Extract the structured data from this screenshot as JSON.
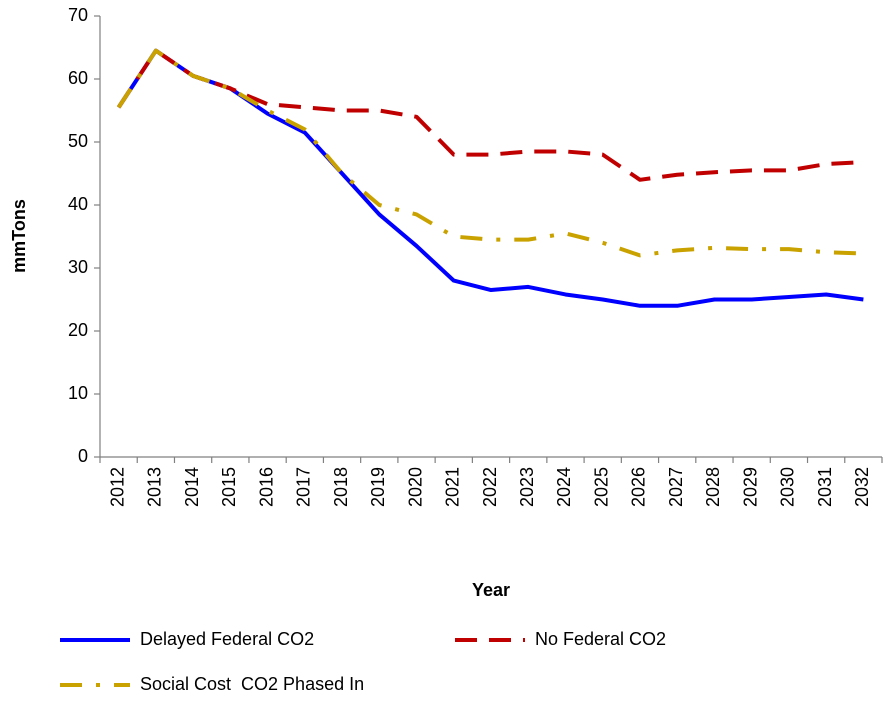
{
  "chart_data": {
    "type": "line",
    "x_label": "Year",
    "y_label": "mmTons",
    "categories": [
      "2012",
      "2013",
      "2014",
      "2015",
      "2016",
      "2017",
      "2018",
      "2019",
      "2020",
      "2021",
      "2022",
      "2023",
      "2024",
      "2025",
      "2026",
      "2027",
      "2028",
      "2029",
      "2030",
      "2031",
      "2032"
    ],
    "series": [
      {
        "name": "Delayed Federal CO2",
        "color": "#0000ff",
        "line_style": "solid",
        "values": [
          55.5,
          64.5,
          60.5,
          58.5,
          54.5,
          51.5,
          45,
          38.5,
          33.5,
          28,
          26.5,
          27,
          25.8,
          25,
          24,
          24,
          25,
          25,
          25.4,
          25.8,
          25
        ]
      },
      {
        "name": "No Federal CO2",
        "color": "#c00000",
        "line_style": "dashed",
        "values": [
          55.5,
          64.5,
          60.5,
          58.5,
          56,
          55.5,
          55,
          55,
          54,
          48,
          48,
          48.5,
          48.5,
          48,
          44,
          44.8,
          45.2,
          45.5,
          45.5,
          46.5,
          46.8
        ]
      },
      {
        "name": "Social Cost  CO2 Phased In",
        "color": "#c9a200",
        "line_style": "dashdot",
        "values": [
          55.5,
          64.5,
          60.5,
          58.5,
          55,
          52,
          45,
          40,
          38.5,
          35,
          34.5,
          34.5,
          35.5,
          34,
          32,
          32.8,
          33.2,
          33,
          33,
          32.5,
          32.3
        ]
      }
    ],
    "ylim": [
      0,
      70
    ],
    "yticks": [
      0,
      10,
      20,
      30,
      40,
      50,
      60,
      70
    ],
    "grid": false
  }
}
